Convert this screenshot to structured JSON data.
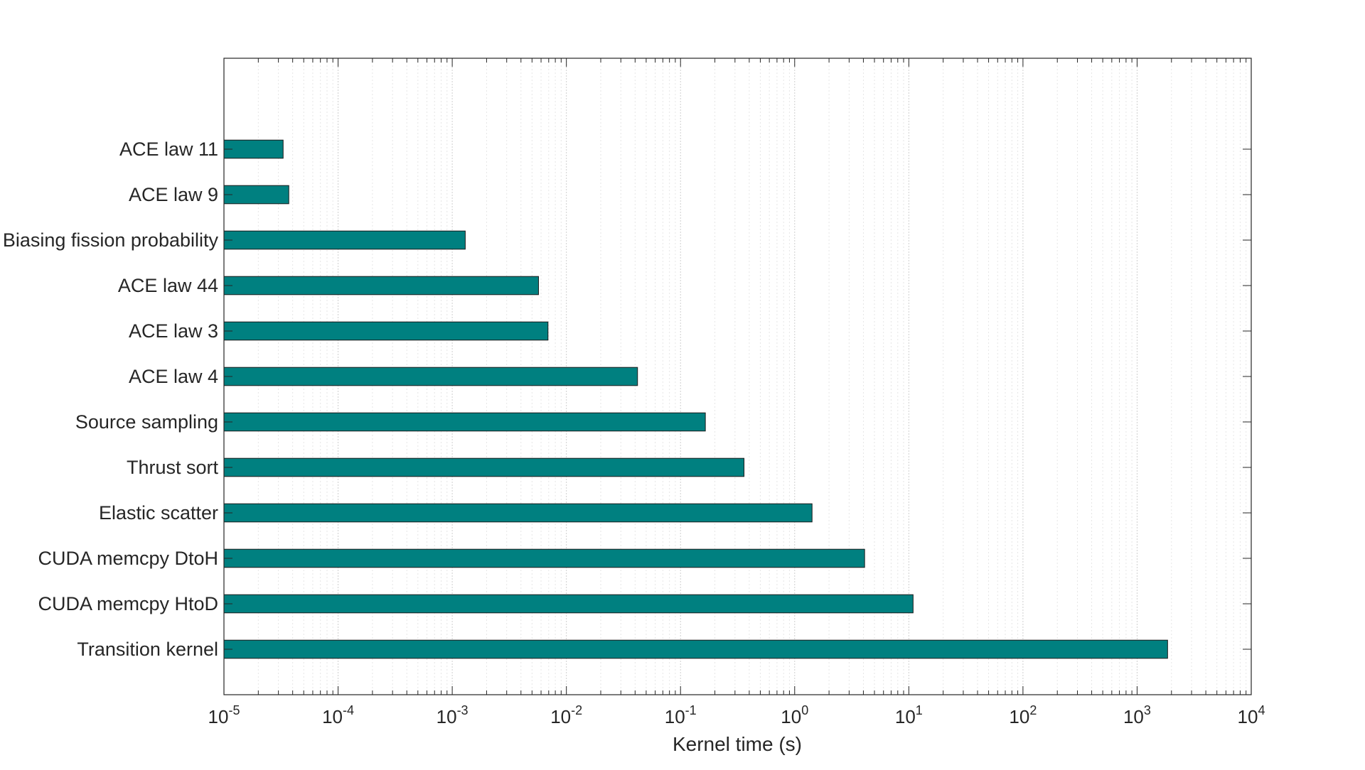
{
  "chart_data": {
    "type": "bar",
    "orientation": "horizontal",
    "xscale": "log",
    "xlim": [
      1e-05,
      10000
    ],
    "xlabel": "Kernel time (s)",
    "ylabel": "",
    "title": "",
    "grid": "x",
    "bar_color": "#008080",
    "bar_edge_color": "#1a1a1a",
    "categories": [
      "ACE law 11",
      "ACE law 9",
      "Biasing fission probability",
      "ACE law 44",
      "ACE law 3",
      "ACE law 4",
      "Source sampling",
      "Thrust sort",
      "Elastic scatter",
      "CUDA memcpy DtoH",
      "CUDA memcpy HtoD",
      "Transition kernel"
    ],
    "values": [
      3.3e-05,
      3.7e-05,
      0.0013,
      0.0057,
      0.0069,
      0.042,
      0.165,
      0.36,
      1.42,
      4.1,
      10.9,
      1850
    ],
    "xticks": [
      {
        "base": "10",
        "exp": "-5"
      },
      {
        "base": "10",
        "exp": "-4"
      },
      {
        "base": "10",
        "exp": "-3"
      },
      {
        "base": "10",
        "exp": "-2"
      },
      {
        "base": "10",
        "exp": "-1"
      },
      {
        "base": "10",
        "exp": "0"
      },
      {
        "base": "10",
        "exp": "1"
      },
      {
        "base": "10",
        "exp": "2"
      },
      {
        "base": "10",
        "exp": "3"
      },
      {
        "base": "10",
        "exp": "4"
      }
    ]
  }
}
